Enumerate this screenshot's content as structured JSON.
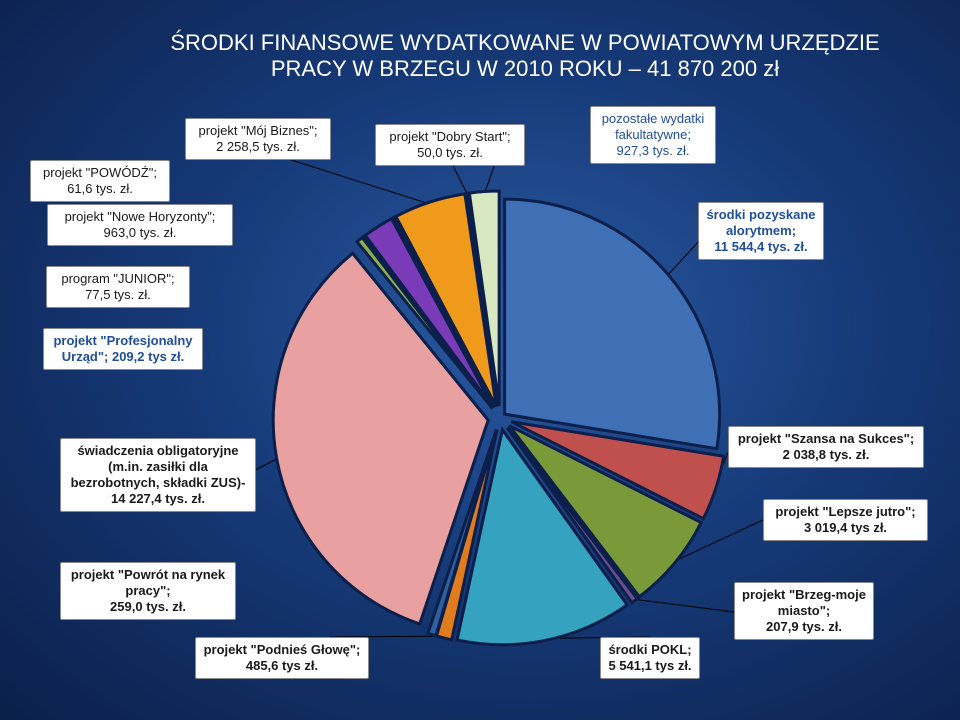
{
  "title_line1": "ŚRODKI FINANSOWE WYDATKOWANE W POWIATOWYM URZĘDZIE",
  "title_line2": "PRACY W BRZEGU W 2010 ROKU – 41 870 200 zł",
  "chart_data": {
    "type": "pie",
    "title": "ŚRODKI FINANSOWE WYDATKOWANE W POWIATOWYM URZĘDZIE PRACY W BRZEGU W 2010 ROKU – 41 870 200 zł",
    "unit": "tys. zł",
    "slices": [
      {
        "label": "środki pozyskane alorytmem; 11 544,4 tys. zł.",
        "value": 11544.4,
        "color": "#3f6fb4"
      },
      {
        "label": "projekt \"Szansa na Sukces\"; 2 038,8 tys. zł.",
        "value": 2038.8,
        "color": "#c0504d"
      },
      {
        "label": "projekt \"Lepsze jutro\"; 3 019,4 tys zł.",
        "value": 3019.4,
        "color": "#7a9a3a"
      },
      {
        "label": "projekt \"Brzeg-moje miasto\"; 207,9 tys. zł.",
        "value": 207.9,
        "color": "#6a4c93"
      },
      {
        "label": "środki POKL; 5 541,1 tys zł.",
        "value": 5541.1,
        "color": "#35a3bf"
      },
      {
        "label": "projekt \"Podnieś Głowę\"; 485,6 tys zł.",
        "value": 485.6,
        "color": "#e07b1e"
      },
      {
        "label": "projekt \"Powrót na rynek pracy\"; 259,0 tys. zł.",
        "value": 259.0,
        "color": "#2e5f9e"
      },
      {
        "label": "świadczenia obligatoryjne (m.in. zasiłki dla bezrobotnych, składki ZUS)- 14 227,4 tys. zł.",
        "value": 14227.4,
        "color": "#e8a0a0"
      },
      {
        "label": "projekt \"Profesjonalny Urząd\"; 209,2 tys zł.",
        "value": 209.2,
        "color": "#8bb14a"
      },
      {
        "label": "program \"JUNIOR\"; 77,5 tys. zł.",
        "value": 77.5,
        "color": "#4a3a8a"
      },
      {
        "label": "projekt \"Nowe Horyzonty\"; 963,0 tys. zł.",
        "value": 963.0,
        "color": "#7a3bb8"
      },
      {
        "label": "projekt \"POWÓDŹ\"; 61,6 tys. zł.",
        "value": 61.6,
        "color": "#2f86b0"
      },
      {
        "label": "projekt \"Mój Biznes\"; 2 258,5 tys. zł.",
        "value": 2258.5,
        "color": "#f09a1c"
      },
      {
        "label": "projekt \"Dobry Start\"; 50,0 tys. zł.",
        "value": 50.0,
        "color": "#3aa0d0"
      },
      {
        "label": "pozostałe wydatki fakultatywne; 927,3 tys. zł.",
        "value": 927.3,
        "color": "#d8e8c0"
      }
    ]
  },
  "labels": {
    "powodz": "projekt \"POWÓDŹ\";\n61,6 tys. zł.",
    "moj_biznes": "projekt \"Mój Biznes\";\n2 258,5 tys. zł.",
    "dobry_start": "projekt \"Dobry Start\";\n50,0 tys. zł.",
    "pozostale": "pozostałe wydatki\nfakultatywne;\n927,3 tys. zł.",
    "nowe_horyzonty": "projekt \"Nowe Horyzonty\";\n963,0 tys. zł.",
    "alorytm": "środki pozyskane\nalorytmem;\n11 544,4 tys. zł.",
    "junior": "program \"JUNIOR\";\n77,5 tys. zł.",
    "profesjonalny": "projekt \"Profesjonalny\nUrząd\"; 209,2 tys zł.",
    "swiadczenia": "świadczenia obligatoryjne\n(m.in. zasiłki dla\nbezrobotnych, składki ZUS)-\n14 227,4 tys. zł.",
    "szansa": "projekt \"Szansa na Sukces\";\n2 038,8 tys. zł.",
    "lepsze_jutro": "projekt \"Lepsze jutro\";\n3 019,4 tys zł.",
    "powrot": "projekt \"Powrót na rynek\npracy\";\n259,0 tys. zł.",
    "brzeg": "projekt \"Brzeg-moje\nmiasto\";\n207,9 tys. zł.",
    "podnies": "projekt \"Podnieś Głowę\";\n485,6 tys zł.",
    "pokl": "środki POKL;\n5 541,1 tys zł."
  }
}
